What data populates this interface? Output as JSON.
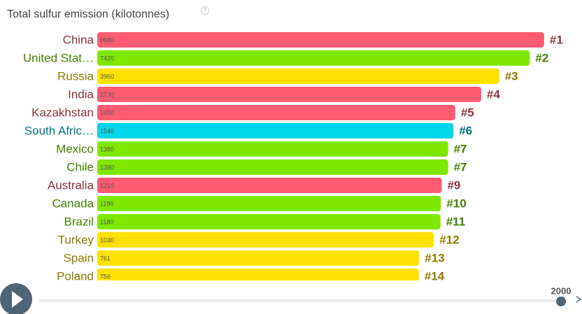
{
  "chart_data": {
    "type": "bar",
    "orientation": "horizontal",
    "log_scale": true,
    "title": "Total sulfur emission (kilotonnes)",
    "categories": [
      "China",
      "United Stat…",
      "Russia",
      "India",
      "Kazakhstan",
      "South Afric…",
      "Mexico",
      "Chile",
      "Australia",
      "Canada",
      "Brazil",
      "Turkey",
      "Spain",
      "Poland"
    ],
    "values": [
      9980,
      7420,
      3960,
      2730,
      1600,
      1540,
      1380,
      1380,
      1210,
      1190,
      1180,
      1030,
      761,
      756
    ],
    "ranks": [
      "#1",
      "#2",
      "#3",
      "#4",
      "#5",
      "#6",
      "#7",
      "#7",
      "#9",
      "#10",
      "#11",
      "#12",
      "#13",
      "#14"
    ],
    "colors": [
      "#ff5b72",
      "#7ee800",
      "#ffe100",
      "#ff5b72",
      "#ff5b72",
      "#00d5ea",
      "#7ee800",
      "#7ee800",
      "#ff5b72",
      "#7ee800",
      "#7ee800",
      "#ffe100",
      "#ffe100",
      "#ffe100"
    ],
    "xlim": [
      1,
      10000
    ],
    "year": 2000
  }
}
